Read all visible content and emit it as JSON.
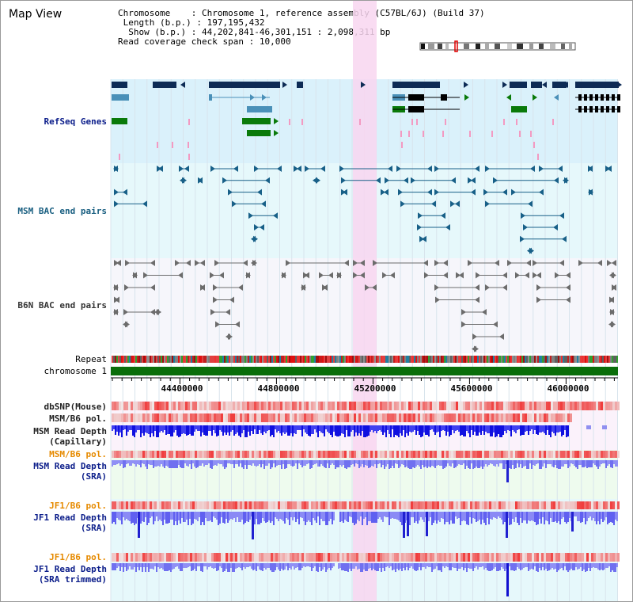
{
  "title": "Map View",
  "info": {
    "chromosome_key": "Chromosome",
    "chromosome_val": "Chromosome 1, reference assembly (C57BL/6J) (Build 37)",
    "length_key": "Length (b.p.)",
    "length_val": "197,195,432",
    "show_key": "Show (b.p.)",
    "show_val": "44,202,841-46,301,151 : 2,098,311 bp",
    "coverage_key": "Read coverage check span",
    "coverage_val": "10,000"
  },
  "tracks": {
    "refseq": "RefSeq Genes",
    "msm_bac": "MSM BAC end pairs",
    "b6n_bac": "B6N BAC end pairs",
    "repeat": "Repeat",
    "chromosome": "chromosome 1",
    "dbsnp": "dbSNP(Mouse)",
    "msm_b6_pol_1": "MSM/B6 pol.",
    "msm_depth_cap_1": "MSM Read Depth",
    "msm_depth_cap_2": "(Capillary)",
    "msm_b6_pol_2": "MSM/B6 pol.",
    "msm_depth_sra_1": "MSM Read Depth",
    "msm_depth_sra_2": "(SRA)",
    "jf1_b6_pol_1": "JF1/B6 pol.",
    "jf1_depth_sra_1": "JF1 Read Depth",
    "jf1_depth_sra_2": "(SRA)",
    "jf1_b6_pol_2": "JF1/B6 pol.",
    "jf1_depth_trim_1": "JF1 Read Depth",
    "jf1_depth_trim_2": "(SRA trimmed)"
  },
  "axis": {
    "ticks": [
      "44400000",
      "44800000",
      "45200000",
      "45600000",
      "46000000"
    ]
  },
  "colors": {
    "highlight": "#f8d6f0",
    "refseq_band": "#daf1fb",
    "msm_band": "#e6f8fb",
    "gene_navy": "#0d2b55",
    "gene_steel": "#4a90b8",
    "gene_green": "#0a7a0a",
    "chromosome_bar": "#0a6e0a",
    "depth_blue": "#1a1ae0",
    "depth_light": "#8080f0",
    "pol_red": "#f06060"
  }
}
